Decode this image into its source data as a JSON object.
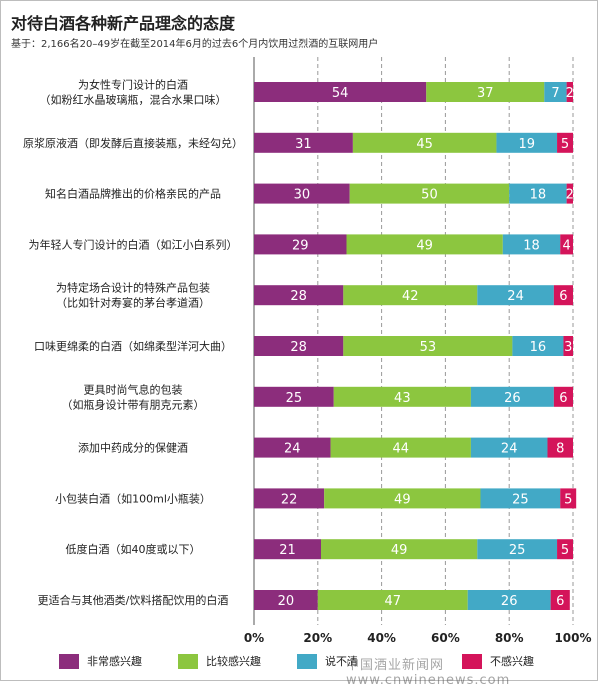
{
  "title": "对待白酒各种新产品理念的态度",
  "subtitle": "基于：2,166名20–49岁在截至2014年6月的过去6个月内饮用过烈酒的互联网用户",
  "watermark": "中国酒业新闻网 www.cnwinenews.com",
  "colors": {
    "series1": "#8c2d7c",
    "series2": "#8cc63f",
    "series3": "#42a9c6",
    "series4": "#d4145a"
  },
  "chart_data": {
    "type": "bar",
    "orientation": "horizontal",
    "stacked": true,
    "categories": [
      [
        "为女性专门设计的白酒",
        "（如粉红水晶玻璃瓶，混合水果口味）"
      ],
      [
        "原浆原液酒（即发酵后直接装瓶，未经勾兑）"
      ],
      [
        "知名白酒品牌推出的价格亲民的产品"
      ],
      [
        "为年轻人专门设计的白酒（如江小白系列）"
      ],
      [
        "为特定场合设计的特殊产品包装",
        "（比如针对寿宴的茅台孝道酒）"
      ],
      [
        "口味更绵柔的白酒（如绵柔型洋河大曲）"
      ],
      [
        "更具时尚气息的包装",
        "（如瓶身设计带有朋克元素）"
      ],
      [
        "添加中药成分的保健酒"
      ],
      [
        "小包装白酒（如100ml小瓶装）"
      ],
      [
        "低度白酒（如40度或以下）"
      ],
      [
        "更适合与其他酒类/饮料搭配饮用的白酒"
      ]
    ],
    "series": [
      {
        "name": "非常感兴趣",
        "values": [
          54,
          31,
          30,
          29,
          28,
          28,
          25,
          24,
          22,
          21,
          20
        ]
      },
      {
        "name": "比较感兴趣",
        "values": [
          37,
          45,
          50,
          49,
          42,
          53,
          43,
          44,
          49,
          49,
          47
        ]
      },
      {
        "name": "说不清",
        "values": [
          7,
          19,
          18,
          18,
          24,
          16,
          26,
          24,
          25,
          25,
          26
        ]
      },
      {
        "name": "不感兴趣",
        "values": [
          2,
          5,
          2,
          4,
          6,
          3,
          6,
          8,
          5,
          5,
          6
        ]
      }
    ],
    "xlim": [
      0,
      100
    ],
    "xticks": [
      "0%",
      "20%",
      "40%",
      "60%",
      "80%",
      "100%"
    ],
    "grid": true,
    "legend_position": "bottom"
  }
}
